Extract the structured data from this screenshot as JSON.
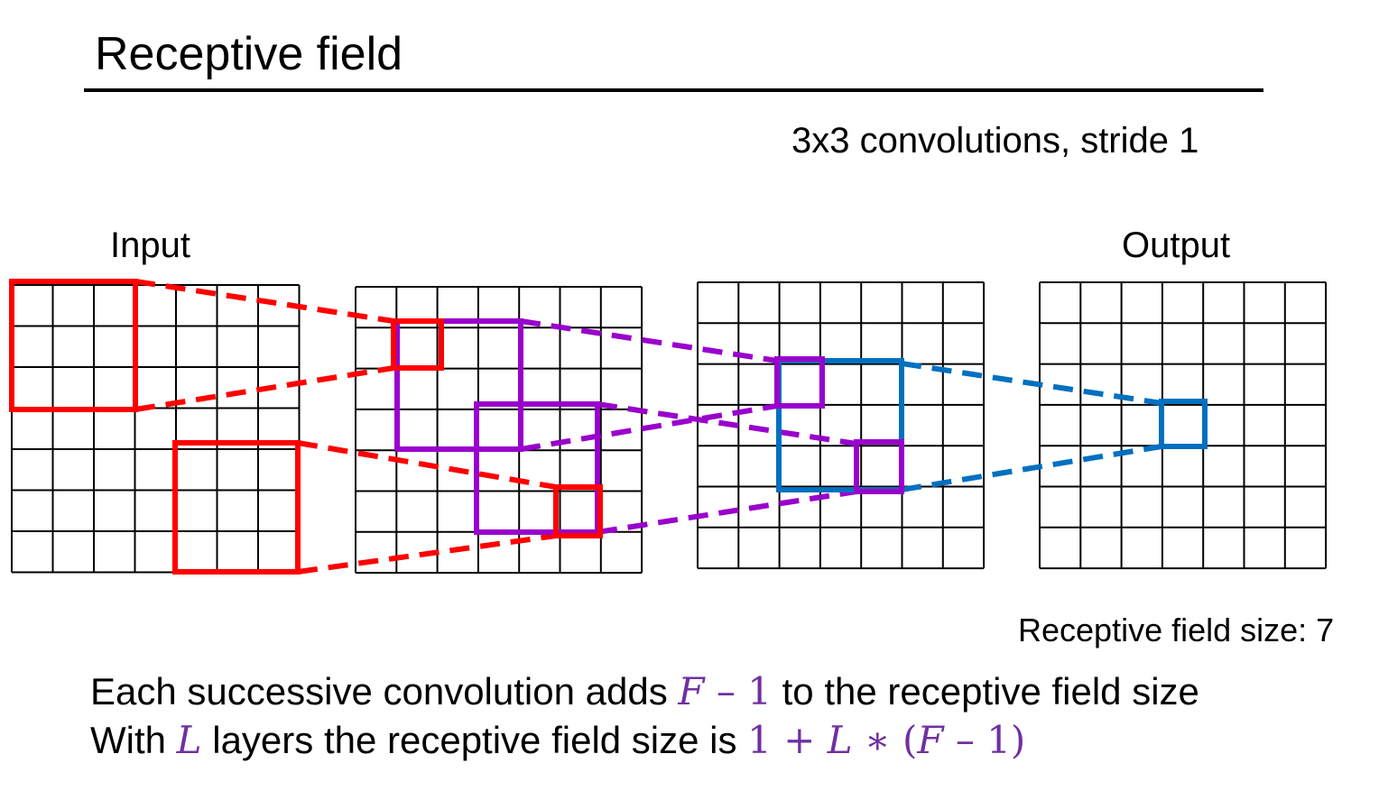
{
  "title": "Receptive field",
  "subtitle": "3x3 convolutions, stride 1",
  "labels": {
    "input": "Input",
    "output": "Output"
  },
  "receptive_field": {
    "label": "Receptive field size:",
    "value": "7"
  },
  "grid": {
    "rows": 7,
    "cols": 7,
    "layers": 4
  },
  "colors": {
    "red": "#ff0000",
    "purple": "#9900cc",
    "blue": "#0070c0",
    "math": "#7030a0",
    "grid": "#000000"
  },
  "lines": {
    "line1": {
      "text_before": "Each successive convolution adds",
      "math_var": "F",
      "math_rest": "– 1",
      "text_after": "to the receptive field size"
    },
    "line2": {
      "text_before": "With",
      "math_var_l": "L",
      "text_middle": "layers the receptive field size is",
      "math_one": "1 +",
      "math_l": "L",
      "math_op": "∗ (",
      "math_f": "F",
      "math_tail": "– 1)"
    }
  }
}
